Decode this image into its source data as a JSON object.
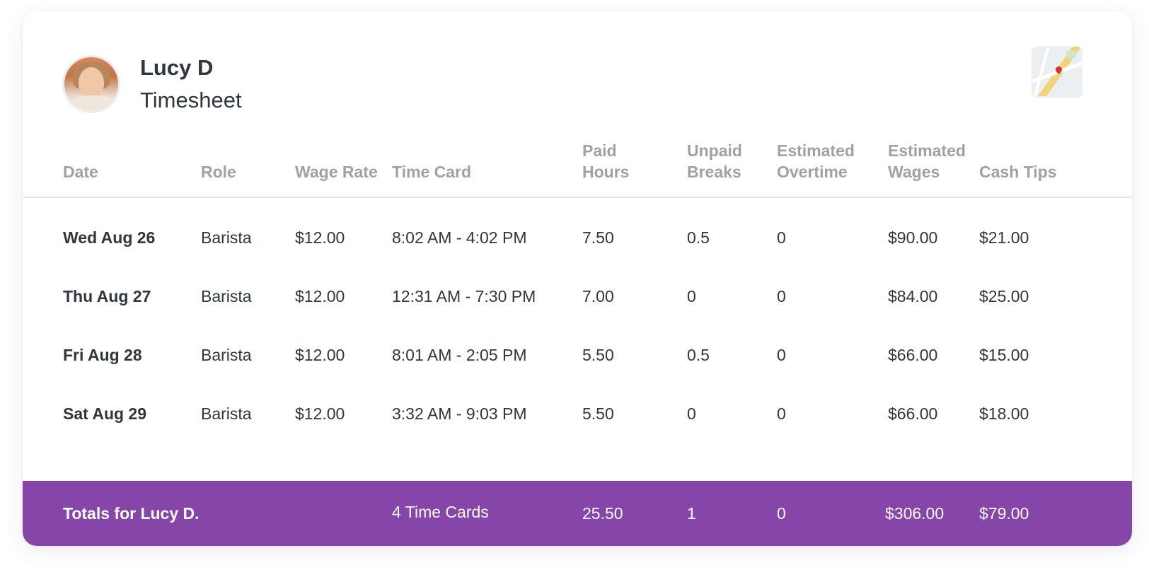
{
  "employee": {
    "name": "Lucy D",
    "subtitle": "Timesheet"
  },
  "icons": {
    "avatar": "user-avatar-photo",
    "map": "map-thumbnail-icon"
  },
  "colors": {
    "totals_background": "#8645a8",
    "header_text": "#9ea1a7",
    "body_text": "#2f3640"
  },
  "table": {
    "headers": {
      "date": "Date",
      "role": "Role",
      "wage_rate": "Wage Rate",
      "time_card": "Time Card",
      "paid_hours_1": "Paid",
      "paid_hours_2": "Hours",
      "unpaid_breaks_1": "Unpaid",
      "unpaid_breaks_2": "Breaks",
      "estimated_overtime_1": "Estimated",
      "estimated_overtime_2": "Overtime",
      "estimated_wages_1": "Estimated",
      "estimated_wages_2": "Wages",
      "cash_tips": "Cash Tips"
    },
    "rows": [
      {
        "date": "Wed Aug 26",
        "role": "Barista",
        "wage_rate": "$12.00",
        "time_card": "8:02 AM - 4:02 PM",
        "paid_hours": "7.50",
        "unpaid_breaks": "0.5",
        "estimated_overtime": "0",
        "estimated_wages": "$90.00",
        "cash_tips": "$21.00"
      },
      {
        "date": "Thu Aug 27",
        "role": "Barista",
        "wage_rate": "$12.00",
        "time_card": "12:31 AM - 7:30 PM",
        "paid_hours": "7.00",
        "unpaid_breaks": "0",
        "estimated_overtime": "0",
        "estimated_wages": "$84.00",
        "cash_tips": "$25.00"
      },
      {
        "date": "Fri Aug 28",
        "role": "Barista",
        "wage_rate": "$12.00",
        "time_card": "8:01 AM - 2:05 PM",
        "paid_hours": "5.50",
        "unpaid_breaks": "0.5",
        "estimated_overtime": "0",
        "estimated_wages": "$66.00",
        "cash_tips": "$15.00"
      },
      {
        "date": "Sat Aug 29",
        "role": "Barista",
        "wage_rate": "$12.00",
        "time_card": "3:32 AM - 9:03 PM",
        "paid_hours": "5.50",
        "unpaid_breaks": "0",
        "estimated_overtime": "0",
        "estimated_wages": "$66.00",
        "cash_tips": "$18.00"
      }
    ],
    "totals": {
      "label": "Totals for Lucy D.",
      "time_cards": "4 Time Cards",
      "paid_hours": "25.50",
      "unpaid_breaks": "1",
      "estimated_overtime": "0",
      "estimated_wages": "$306.00",
      "cash_tips": "$79.00"
    }
  }
}
